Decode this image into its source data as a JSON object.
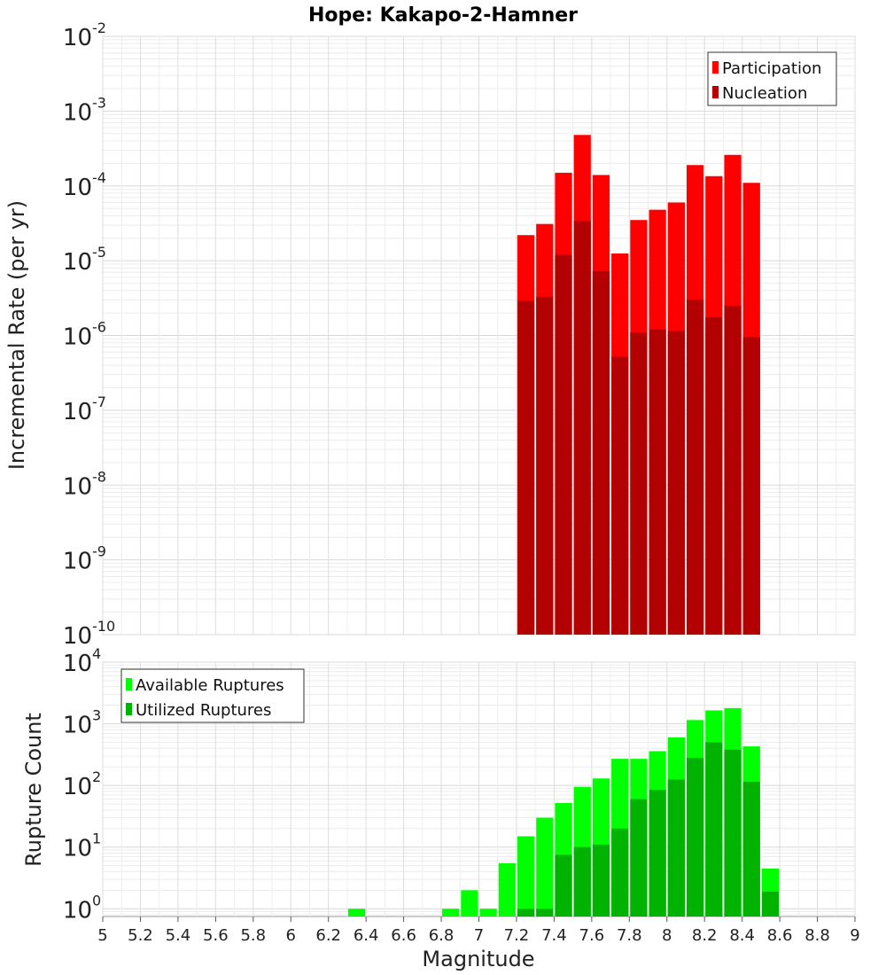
{
  "title": "Hope: Kakapo-2-Hamner",
  "chart_data": [
    {
      "type": "bar",
      "panel": "top",
      "ylabel": "Incremental Rate (per yr)",
      "yscale": "log",
      "ylim": [
        1e-10,
        0.01
      ],
      "xlim": [
        5,
        9
      ],
      "y_tick_exponents": [
        "-10",
        "-9",
        "-8",
        "-7",
        "-6",
        "-5",
        "-4",
        "-3",
        "-2"
      ],
      "grid": true,
      "legend_position": "top-right",
      "x": [
        7.25,
        7.35,
        7.45,
        7.55,
        7.65,
        7.75,
        7.85,
        7.95,
        8.05,
        8.15,
        8.25,
        8.35,
        8.45
      ],
      "series": [
        {
          "name": "Participation",
          "color": "#ff0000",
          "values": [
            2.2e-05,
            3.1e-05,
            0.00015,
            0.00048,
            0.00014,
            1.25e-05,
            3.5e-05,
            4.8e-05,
            6e-05,
            0.00019,
            0.000135,
            0.00026,
            0.00011
          ]
        },
        {
          "name": "Nucleation",
          "color": "#b30000",
          "values": [
            2.9e-06,
            3.3e-06,
            1.2e-05,
            3.4e-05,
            7.2e-06,
            5.2e-07,
            1.1e-06,
            1.2e-06,
            1.15e-06,
            3e-06,
            1.75e-06,
            2.5e-06,
            9.5e-07
          ]
        }
      ]
    },
    {
      "type": "bar",
      "panel": "bottom",
      "xlabel": "Magnitude",
      "ylabel": "Rupture Count",
      "yscale": "log",
      "ylim": [
        0.75,
        10000
      ],
      "xlim": [
        5,
        9
      ],
      "x_ticks": [
        "5",
        "5.2",
        "5.4",
        "5.6",
        "5.8",
        "6",
        "6.2",
        "6.4",
        "6.6",
        "6.8",
        "7",
        "7.2",
        "7.4",
        "7.6",
        "7.8",
        "8",
        "8.2",
        "8.4",
        "8.6",
        "8.8",
        "9"
      ],
      "y_tick_exponents": [
        "0",
        "1",
        "2",
        "3",
        "4"
      ],
      "grid": true,
      "legend_position": "top-left",
      "x": [
        6.35,
        6.85,
        6.95,
        7.05,
        7.15,
        7.25,
        7.35,
        7.45,
        7.55,
        7.65,
        7.75,
        7.85,
        7.95,
        8.05,
        8.15,
        8.25,
        8.35,
        8.45,
        8.55
      ],
      "series": [
        {
          "name": "Available Ruptures",
          "color": "#00ff00",
          "values": [
            1,
            1,
            2,
            1,
            5.5,
            15,
            30,
            52,
            95,
            130,
            270,
            270,
            360,
            600,
            1150,
            1650,
            1800,
            430,
            4.5
          ]
        },
        {
          "name": "Utilized Ruptures",
          "color": "#00b300",
          "values": [
            0,
            0,
            0,
            0,
            0,
            1,
            1,
            7.5,
            10,
            11,
            20,
            60,
            85,
            125,
            280,
            500,
            380,
            115,
            1.9
          ]
        }
      ]
    }
  ]
}
